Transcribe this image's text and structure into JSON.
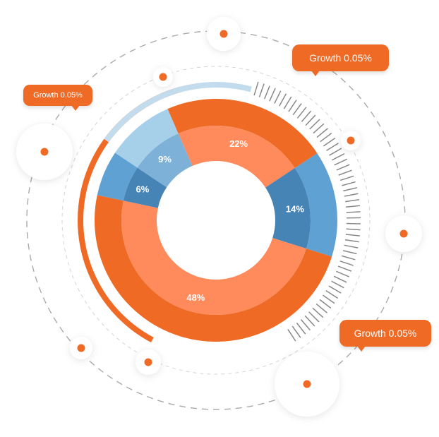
{
  "colors": {
    "orange_outer": "#ee6a25",
    "orange_inner": "#ff8a5b",
    "blue_outer": "#5fa1d2",
    "blue_inner": "#4784b6",
    "lightblue_outer": "#a6cfe9",
    "lightblue_inner": "#7eb1d8",
    "arc_light": "#c2dbed",
    "ticks": "#888888",
    "dashes": "#aaaaaa"
  },
  "chart_data": {
    "type": "pie",
    "variant": "donut",
    "slices": [
      {
        "label": "22%",
        "value": 22,
        "color_outer": "#ee6a25",
        "color_inner": "#ff8a5b"
      },
      {
        "label": "14%",
        "value": 14,
        "color_outer": "#5fa1d2",
        "color_inner": "#4784b6"
      },
      {
        "label": "48%",
        "value": 48,
        "color_outer": "#ee6a25",
        "color_inner": "#ff8a5b"
      },
      {
        "label": "6%",
        "value": 6,
        "color_outer": "#5fa1d2",
        "color_inner": "#4784b6"
      },
      {
        "label": "9%",
        "value": 9,
        "color_outer": "#a6cfe9",
        "color_inner": "#7eb1d8"
      }
    ],
    "callouts": [
      {
        "id": "callout-top-right",
        "text": "Growth 0.05%"
      },
      {
        "id": "callout-top-left",
        "text": "Growth 0.05%"
      },
      {
        "id": "callout-bottom-right",
        "text": "Growth 0.05%"
      }
    ]
  }
}
